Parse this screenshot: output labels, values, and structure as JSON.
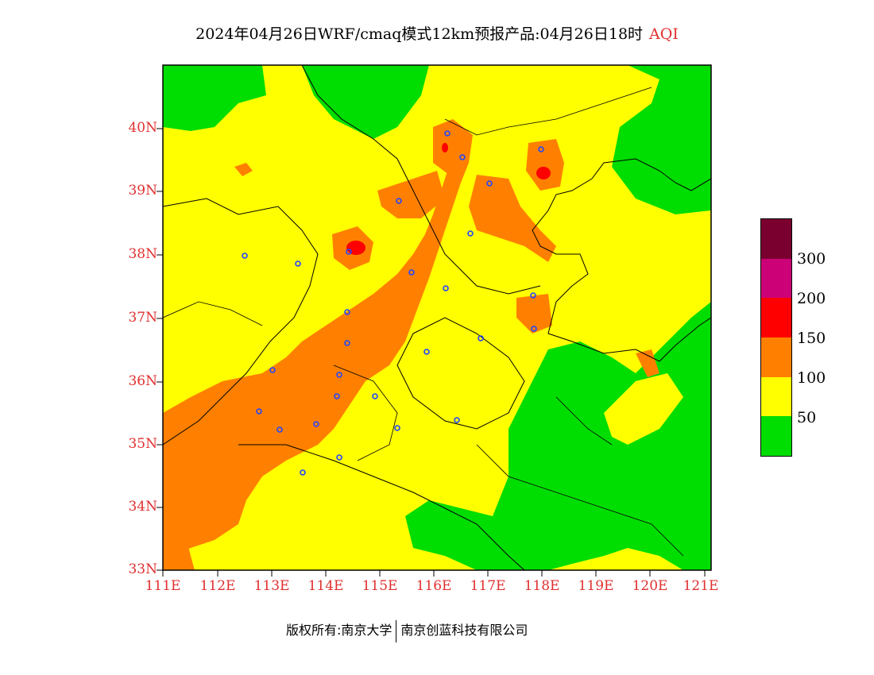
{
  "title": {
    "main": "2024年04月26日WRF/cmaq模式12km预报产品:04月26日18时",
    "product": "AQI"
  },
  "axes": {
    "lat_labels": [
      "40N",
      "39N",
      "38N",
      "37N",
      "36N",
      "35N",
      "34N",
      "33N"
    ],
    "lon_labels": [
      "111E",
      "112E",
      "113E",
      "114E",
      "115E",
      "116E",
      "117E",
      "118E",
      "119E",
      "120E",
      "121E"
    ],
    "lat_range": [
      33,
      40.95
    ],
    "lon_range": [
      111,
      121.3
    ]
  },
  "legend": {
    "colors": [
      "#7a0030",
      "#cc0077",
      "#ff0000",
      "#ff8000",
      "#ffff00",
      "#00dd00"
    ],
    "labels": [
      "300",
      "200",
      "150",
      "100",
      "50"
    ],
    "categories": [
      "> 300",
      "200-300",
      "150-200",
      "100-150",
      "50-100",
      "0-50"
    ]
  },
  "footer": {
    "copyright": "版权所有:南京大学",
    "company": "南京创蓝科技有限公司"
  }
}
